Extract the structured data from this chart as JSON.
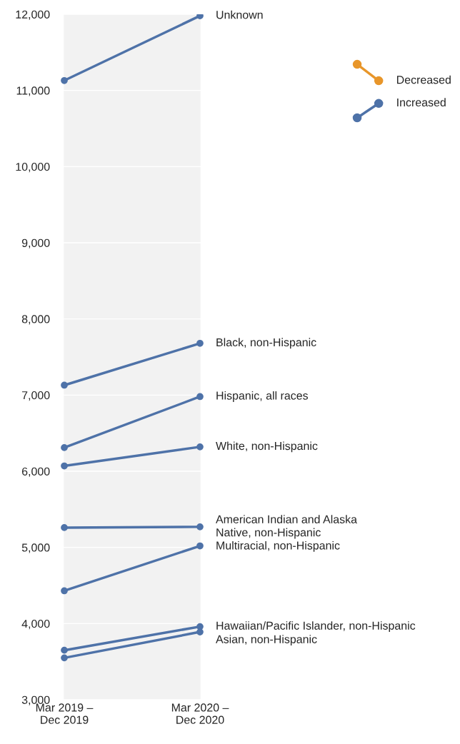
{
  "chart_data": {
    "type": "line",
    "categories": [
      "Mar 2019 –\nDec 2019",
      "Mar 2020 –\nDec 2020"
    ],
    "series": [
      {
        "name": "Unknown",
        "color": "#4e72a8",
        "values": [
          11130,
          11980
        ]
      },
      {
        "name": "Black, non-Hispanic",
        "color": "#4e72a8",
        "values": [
          7130,
          7680
        ]
      },
      {
        "name": "Hispanic, all races",
        "color": "#4e72a8",
        "values": [
          6310,
          6980
        ]
      },
      {
        "name": "White, non-Hispanic",
        "color": "#4e72a8",
        "values": [
          6070,
          6320
        ]
      },
      {
        "name": "American Indian and Alaska\nNative, non-Hispanic",
        "color": "#4e72a8",
        "values": [
          5260,
          5270
        ]
      },
      {
        "name": "Multiracial, non-Hispanic",
        "color": "#4e72a8",
        "values": [
          4430,
          5020
        ]
      },
      {
        "name": "Hawaiian/Pacific Islander, non-Hispanic",
        "color": "#4e72a8",
        "values": [
          3650,
          3960
        ]
      },
      {
        "name": "Asian, non-Hispanic",
        "color": "#4e72a8",
        "values": [
          3550,
          3890
        ]
      }
    ],
    "annotations": [
      "Decreased",
      "Increased"
    ],
    "ylim": [
      3000,
      12000
    ],
    "yticks": [
      {
        "value": 3000,
        "label": "3,000"
      },
      {
        "value": 4000,
        "label": "4,000"
      },
      {
        "value": 5000,
        "label": "5,000"
      },
      {
        "value": 6000,
        "label": "6,000"
      },
      {
        "value": 7000,
        "label": "7,000"
      },
      {
        "value": 8000,
        "label": "8,000"
      },
      {
        "value": 9000,
        "label": "9,000"
      },
      {
        "value": 10000,
        "label": "10,000"
      },
      {
        "value": 11000,
        "label": "11,000"
      },
      {
        "value": 12000,
        "label": "12,000"
      }
    ],
    "grid": "y",
    "marker": "circle",
    "line_style": "solid",
    "legend": "top right"
  }
}
